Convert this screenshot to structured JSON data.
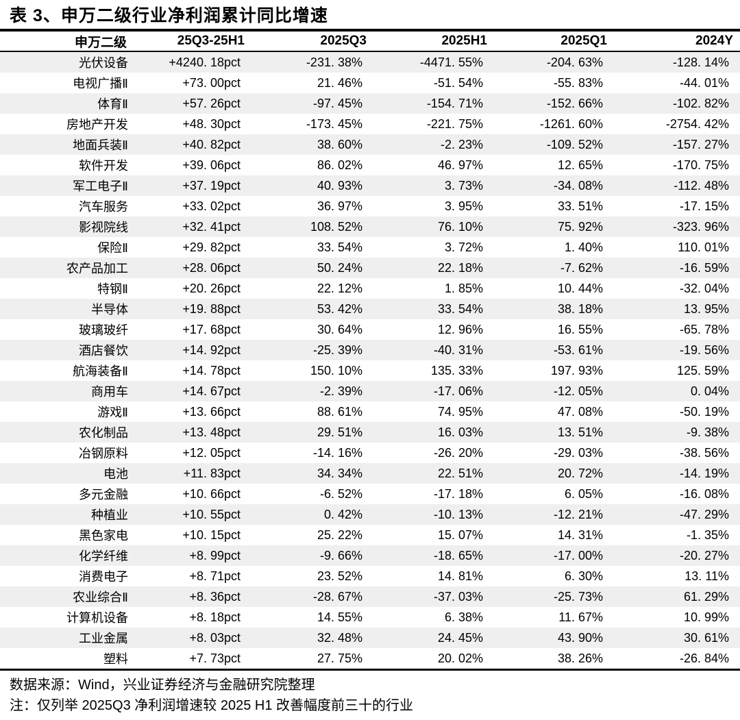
{
  "title": "表 3、申万二级行业净利润累计同比增速",
  "table": {
    "columns": [
      "申万二级",
      "25Q3-25H1",
      "2025Q3",
      "2025H1",
      "2025Q1",
      "2024Y"
    ],
    "rows": [
      [
        "光伏设备",
        "+4240. 18pct",
        "-231. 38%",
        "-4471. 55%",
        "-204. 63%",
        "-128. 14%"
      ],
      [
        "电视广播Ⅱ",
        "+73. 00pct",
        "21. 46%",
        "-51. 54%",
        "-55. 83%",
        "-44. 01%"
      ],
      [
        "体育Ⅱ",
        "+57. 26pct",
        "-97. 45%",
        "-154. 71%",
        "-152. 66%",
        "-102. 82%"
      ],
      [
        "房地产开发",
        "+48. 30pct",
        "-173. 45%",
        "-221. 75%",
        "-1261. 60%",
        "-2754. 42%"
      ],
      [
        "地面兵装Ⅱ",
        "+40. 82pct",
        "38. 60%",
        "-2. 23%",
        "-109. 52%",
        "-157. 27%"
      ],
      [
        "软件开发",
        "+39. 06pct",
        "86. 02%",
        "46. 97%",
        "12. 65%",
        "-170. 75%"
      ],
      [
        "军工电子Ⅱ",
        "+37. 19pct",
        "40. 93%",
        "3. 73%",
        "-34. 08%",
        "-112. 48%"
      ],
      [
        "汽车服务",
        "+33. 02pct",
        "36. 97%",
        "3. 95%",
        "33. 51%",
        "-17. 15%"
      ],
      [
        "影视院线",
        "+32. 41pct",
        "108. 52%",
        "76. 10%",
        "75. 92%",
        "-323. 96%"
      ],
      [
        "保险Ⅱ",
        "+29. 82pct",
        "33. 54%",
        "3. 72%",
        "1. 40%",
        "110. 01%"
      ],
      [
        "农产品加工",
        "+28. 06pct",
        "50. 24%",
        "22. 18%",
        "-7. 62%",
        "-16. 59%"
      ],
      [
        "特钢Ⅱ",
        "+20. 26pct",
        "22. 12%",
        "1. 85%",
        "10. 44%",
        "-32. 04%"
      ],
      [
        "半导体",
        "+19. 88pct",
        "53. 42%",
        "33. 54%",
        "38. 18%",
        "13. 95%"
      ],
      [
        "玻璃玻纤",
        "+17. 68pct",
        "30. 64%",
        "12. 96%",
        "16. 55%",
        "-65. 78%"
      ],
      [
        "酒店餐饮",
        "+14. 92pct",
        "-25. 39%",
        "-40. 31%",
        "-53. 61%",
        "-19. 56%"
      ],
      [
        "航海装备Ⅱ",
        "+14. 78pct",
        "150. 10%",
        "135. 33%",
        "197. 93%",
        "125. 59%"
      ],
      [
        "商用车",
        "+14. 67pct",
        "-2. 39%",
        "-17. 06%",
        "-12. 05%",
        "0. 04%"
      ],
      [
        "游戏Ⅱ",
        "+13. 66pct",
        "88. 61%",
        "74. 95%",
        "47. 08%",
        "-50. 19%"
      ],
      [
        "农化制品",
        "+13. 48pct",
        "29. 51%",
        "16. 03%",
        "13. 51%",
        "-9. 38%"
      ],
      [
        "冶钢原料",
        "+12. 05pct",
        "-14. 16%",
        "-26. 20%",
        "-29. 03%",
        "-38. 56%"
      ],
      [
        "电池",
        "+11. 83pct",
        "34. 34%",
        "22. 51%",
        "20. 72%",
        "-14. 19%"
      ],
      [
        "多元金融",
        "+10. 66pct",
        "-6. 52%",
        "-17. 18%",
        "6. 05%",
        "-16. 08%"
      ],
      [
        "种植业",
        "+10. 55pct",
        "0. 42%",
        "-10. 13%",
        "-12. 21%",
        "-47. 29%"
      ],
      [
        "黑色家电",
        "+10. 15pct",
        "25. 22%",
        "15. 07%",
        "14. 31%",
        "-1. 35%"
      ],
      [
        "化学纤维",
        "+8. 99pct",
        "-9. 66%",
        "-18. 65%",
        "-17. 00%",
        "-20. 27%"
      ],
      [
        "消费电子",
        "+8. 71pct",
        "23. 52%",
        "14. 81%",
        "6. 30%",
        "13. 11%"
      ],
      [
        "农业综合Ⅱ",
        "+8. 36pct",
        "-28. 67%",
        "-37. 03%",
        "-25. 73%",
        "61. 29%"
      ],
      [
        "计算机设备",
        "+8. 18pct",
        "14. 55%",
        "6. 38%",
        "11. 67%",
        "10. 99%"
      ],
      [
        "工业金属",
        "+8. 03pct",
        "32. 48%",
        "24. 45%",
        "43. 90%",
        "30. 61%"
      ],
      [
        "塑料",
        "+7. 73pct",
        "27. 75%",
        "20. 02%",
        "38. 26%",
        "-26. 84%"
      ]
    ]
  },
  "footer": {
    "source": "数据来源：Wind，兴业证券经济与金融研究院整理",
    "note": "注：仅列举 2025Q3 净利润增速较 2025 H1 改善幅度前三十的行业"
  },
  "colors": {
    "stripe_row": "#EFEFEF",
    "border": "#000000",
    "text": "#000000",
    "background": "#FFFFFF"
  }
}
